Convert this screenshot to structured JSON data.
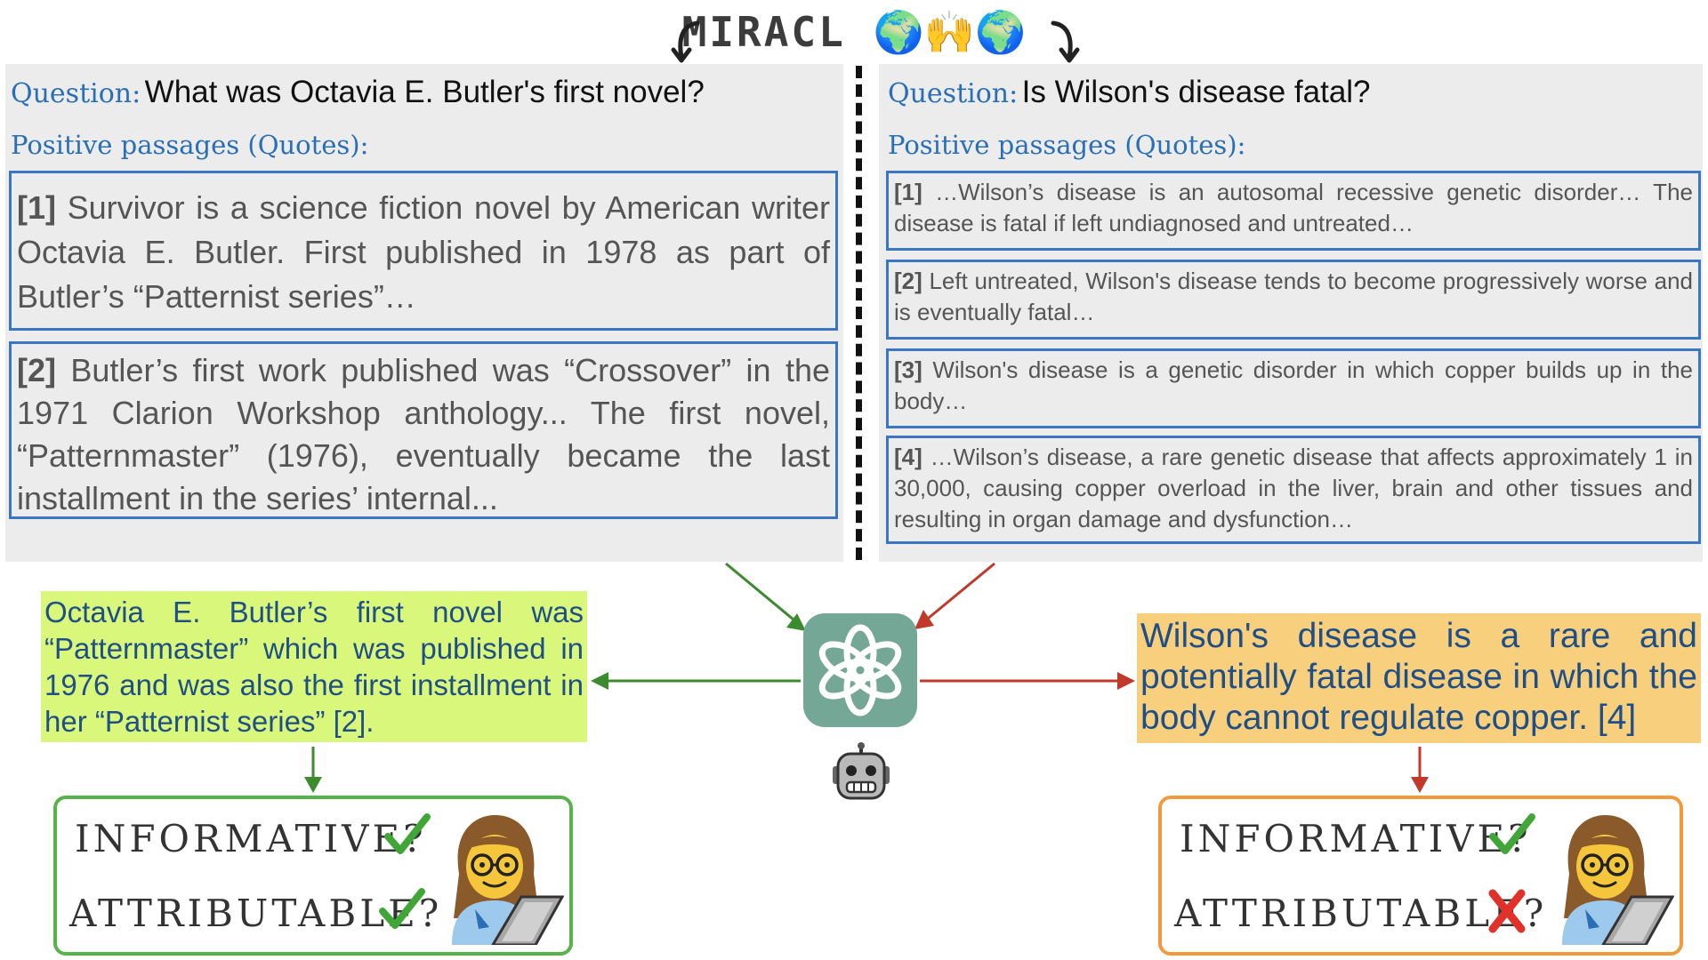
{
  "header": {
    "title": "MIRACL",
    "title_emoji": "🌍🙌🌍"
  },
  "left": {
    "question_label": "Question:",
    "question": "What was Octavia E. Butler's first novel?",
    "positive_label": "Positive passages (Quotes):",
    "passages": [
      {
        "num": "[1]",
        "text": "Survivor is a science fiction novel by American writer Octavia E. Butler. First published in 1978 as part of Butler’s “Patternist series”…"
      },
      {
        "num": "[2]",
        "text": "Butler’s first work published was “Crossover” in the 1971 Clarion Workshop anthology... The first novel, “Patternmaster” (1976), eventually became the last installment in the series’ internal..."
      }
    ],
    "answer": "Octavia E. Butler’s first novel was “Patternmaster” which was published in 1976 and was also the first installment in her “Patternist series” [2].",
    "eval": {
      "informative_label": "INFORMATIVE?",
      "attributable_label": "ATTRIBUTABLE?",
      "informative": "check",
      "attributable": "check"
    }
  },
  "right": {
    "question_label": "Question:",
    "question": "Is Wilson's disease fatal?",
    "positive_label": "Positive passages (Quotes):",
    "passages": [
      {
        "num": "[1]",
        "text": "…Wilson’s disease is an autosomal recessive genetic disorder… The disease is fatal if left undiagnosed and untreated…"
      },
      {
        "num": "[2]",
        "text": "Left untreated, Wilson's disease tends to become progressively worse and is eventually fatal…"
      },
      {
        "num": "[3]",
        "text": "Wilson's disease is a genetic disorder in which copper builds up in the body…"
      },
      {
        "num": "[4]",
        "text": "…Wilson’s disease, a rare genetic disease that affects approximately 1 in 30,000, causing copper overload in the liver, brain and other tissues and resulting in organ damage and dysfunction…"
      }
    ],
    "answer": "Wilson's disease is a rare and potentially fatal disease in which the body cannot regulate copper. [4]",
    "eval": {
      "informative_label": "INFORMATIVE?",
      "attributable_label": "ATTRIBUTABLE?",
      "informative": "check",
      "attributable": "cross"
    }
  },
  "icons": {
    "center_logo": "chatgpt-logo-icon",
    "robot": "robot-face-icon",
    "person": "woman-technologist-icon",
    "check": "check-mark-icon",
    "cross": "cross-mark-icon"
  },
  "colors": {
    "label_blue": "#2a6fb5",
    "passage_border": "#3a76c2",
    "panel_bg": "#ececec",
    "left_answer_bg": "#d9f77a",
    "right_answer_bg": "#f8cf7d",
    "answer_text": "#1f4f86",
    "green": "#3d8b2f",
    "red": "#c0392b",
    "left_eval_border": "#55b447",
    "right_eval_border": "#f29a3a",
    "chatgpt_bg": "#75a797"
  }
}
